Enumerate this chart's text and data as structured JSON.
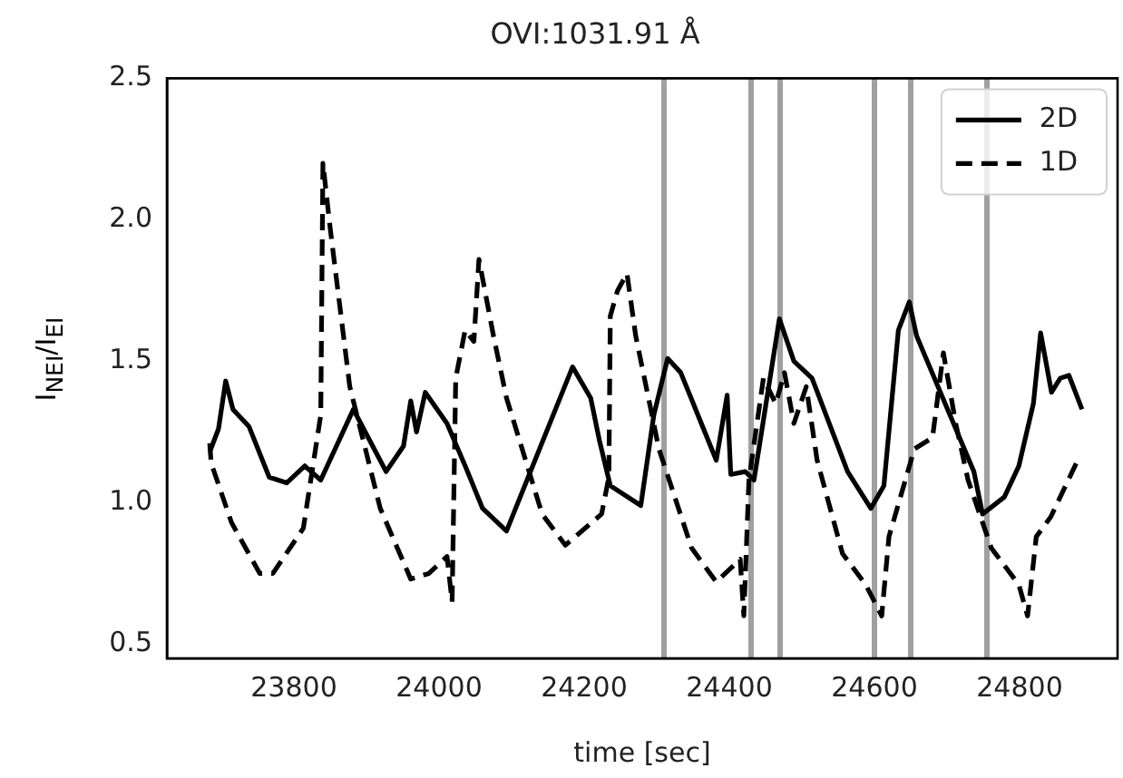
{
  "chart_data": {
    "type": "line",
    "title": "OVI:1031.91 Å",
    "xlabel": "time [sec]",
    "ylabel": "I$_{NEI}$/I$_{EI}$",
    "xlim": [
      23625,
      24935
    ],
    "xticks": [
      23800,
      24000,
      24200,
      24400,
      24600,
      24800
    ],
    "ylim": [
      0.45,
      2.5
    ],
    "yticks": [
      0.5,
      {
        "value": 1,
        "label": "1.0"
      },
      1.5,
      {
        "value": 2,
        "label": "2.0"
      },
      2.5
    ],
    "grid": false,
    "legend": "top right",
    "marker": "none",
    "ref_lines": [
      {
        "axis": "x",
        "value": 24310,
        "color": "#a0a0a0"
      },
      {
        "axis": "x",
        "value": 24430,
        "color": "#a0a0a0"
      },
      {
        "axis": "x",
        "value": 24470,
        "color": "#a0a0a0"
      },
      {
        "axis": "x",
        "value": 24600,
        "color": "#a0a0a0"
      },
      {
        "axis": "x",
        "value": 24650,
        "color": "#a0a0a0"
      },
      {
        "axis": "x",
        "value": 24755,
        "color": "#a0a0a0"
      }
    ],
    "series": [
      {
        "name": "2D",
        "color": "#000000",
        "line_style": "solid",
        "x": [
          23684,
          23696,
          23706,
          23716,
          23738,
          23766,
          23790,
          23815,
          23837,
          23882,
          23927,
          23951,
          23961,
          23969,
          23981,
          24011,
          24036,
          24060,
          24093,
          24184,
          24209,
          24221,
          24236,
          24278,
          24296,
          24315,
          24333,
          24382,
          24397,
          24402,
          24422,
          24434,
          24469,
          24489,
          24514,
          24563,
          24595,
          24613,
          24633,
          24648,
          24658,
          24737,
          24749,
          24779,
          24799,
          24819,
          24829,
          24844,
          24856,
          24868,
          24886
        ],
        "values": [
          1.18,
          1.26,
          1.43,
          1.33,
          1.27,
          1.09,
          1.07,
          1.13,
          1.08,
          1.33,
          1.11,
          1.2,
          1.36,
          1.25,
          1.39,
          1.28,
          1.13,
          0.98,
          0.9,
          1.48,
          1.37,
          1.22,
          1.06,
          0.99,
          1.31,
          1.51,
          1.46,
          1.15,
          1.38,
          1.1,
          1.11,
          1.08,
          1.65,
          1.5,
          1.44,
          1.11,
          0.98,
          1.06,
          1.61,
          1.71,
          1.59,
          1.11,
          0.96,
          1.02,
          1.13,
          1.35,
          1.6,
          1.39,
          1.44,
          1.45,
          1.33
        ]
      },
      {
        "name": "1D",
        "color": "#000000",
        "line_style": "dashed",
        "x": [
          23684,
          23686,
          23714,
          23753,
          23771,
          23813,
          23837,
          23840,
          23850,
          23877,
          23919,
          23961,
          23986,
          24011,
          24018,
          24023,
          24036,
          24048,
          24055,
          24075,
          24093,
          24142,
          24174,
          24224,
          24234,
          24236,
          24246,
          24259,
          24271,
          24303,
          24348,
          24382,
          24415,
          24420,
          24427,
          24447,
          24464,
          24476,
          24489,
          24506,
          24521,
          24556,
          24588,
          24610,
          24620,
          24655,
          24680,
          24695,
          24712,
          24729,
          24761,
          24799,
          24811,
          24823,
          24843,
          24880
        ],
        "values": [
          1.21,
          1.14,
          0.93,
          0.75,
          0.75,
          0.91,
          1.31,
          2.2,
          1.97,
          1.41,
          0.98,
          0.73,
          0.75,
          0.81,
          0.65,
          1.44,
          1.61,
          1.57,
          1.86,
          1.59,
          1.37,
          0.96,
          0.85,
          0.96,
          1.09,
          1.66,
          1.75,
          1.81,
          1.59,
          1.19,
          0.84,
          0.72,
          0.8,
          0.6,
          1.08,
          1.44,
          1.35,
          1.46,
          1.28,
          1.41,
          1.15,
          0.82,
          0.71,
          0.6,
          0.88,
          1.19,
          1.23,
          1.53,
          1.28,
          1.08,
          0.84,
          0.71,
          0.6,
          0.88,
          0.95,
          1.15
        ]
      }
    ]
  }
}
